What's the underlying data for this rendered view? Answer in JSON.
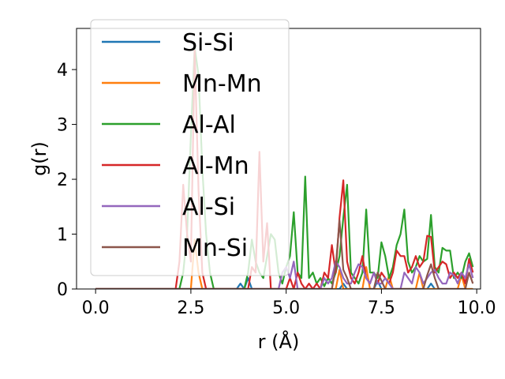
{
  "chart_data": {
    "type": "line",
    "title": "",
    "xlabel": "r (Å)",
    "ylabel": "g(r)",
    "xlim": [
      -0.5,
      10.1
    ],
    "ylim": [
      0,
      4.75
    ],
    "xticks": [
      0.0,
      2.5,
      5.0,
      7.5,
      10.0
    ],
    "xtick_labels": [
      "0.0",
      "2.5",
      "5.0",
      "7.5",
      "10.0"
    ],
    "yticks": [
      0,
      1,
      2,
      3,
      4
    ],
    "ytick_labels": [
      "0",
      "1",
      "2",
      "3",
      "4"
    ],
    "grid": false,
    "legend_position": "upper-left",
    "series": [
      {
        "name": "Si-Si",
        "color": "#1f77b4",
        "x": [
          0,
          3.7,
          3.8,
          3.9,
          4.0,
          4.1,
          4.2,
          6.4,
          6.5,
          6.6,
          7.3,
          7.4,
          7.5,
          7.6,
          8.7,
          8.8,
          8.9,
          9.9
        ],
        "y": [
          0,
          0,
          0.1,
          0.0,
          0.2,
          0,
          0,
          0,
          0.1,
          0,
          0,
          0.15,
          0,
          0,
          0,
          0.1,
          0,
          0
        ]
      },
      {
        "name": "Mn-Mn",
        "color": "#ff7f0e",
        "x": [
          0,
          2.5,
          2.6,
          2.7,
          2.8,
          6.3,
          6.4,
          6.5,
          6.6,
          7.0,
          7.1,
          7.2,
          7.6,
          7.7,
          7.8,
          8.4,
          8.5,
          8.6,
          9.5,
          9.6,
          9.7,
          9.9
        ],
        "y": [
          0,
          0,
          0.9,
          0.3,
          0,
          0,
          0.35,
          0,
          0,
          0,
          0.4,
          0,
          0,
          0.25,
          0,
          0,
          0.3,
          0,
          0,
          0.25,
          0,
          0
        ]
      },
      {
        "name": "Al-Al",
        "color": "#2ca02c",
        "x": [
          0,
          2.1,
          2.2,
          2.3,
          2.4,
          2.5,
          2.6,
          2.7,
          2.8,
          2.9,
          3.0,
          3.1,
          3.2,
          3.8,
          3.9,
          4.0,
          4.1,
          4.2,
          4.3,
          4.4,
          4.5,
          4.6,
          4.7,
          4.8,
          4.9,
          5.0,
          5.1,
          5.2,
          5.3,
          5.4,
          5.5,
          5.6,
          5.7,
          5.8,
          5.9,
          6.0,
          6.1,
          6.2,
          6.3,
          6.4,
          6.5,
          6.6,
          6.7,
          6.8,
          6.9,
          7.0,
          7.1,
          7.2,
          7.3,
          7.4,
          7.5,
          7.6,
          7.7,
          7.8,
          7.9,
          8.0,
          8.1,
          8.2,
          8.3,
          8.4,
          8.5,
          8.6,
          8.7,
          8.8,
          8.9,
          9.0,
          9.1,
          9.2,
          9.3,
          9.4,
          9.5,
          9.6,
          9.7,
          9.8,
          9.9
        ],
        "y": [
          0,
          0,
          0,
          0.3,
          1.0,
          2.8,
          4.4,
          3.9,
          2.2,
          1.0,
          0.3,
          0,
          0,
          0,
          0,
          0.3,
          0.9,
          0.5,
          0.3,
          0.2,
          0.6,
          1.0,
          0.9,
          0.3,
          0.1,
          0.4,
          0.6,
          1.4,
          0.3,
          0.2,
          2.05,
          0.2,
          0.3,
          0.1,
          0.2,
          0.05,
          0.2,
          0.1,
          0.3,
          0.6,
          1.3,
          1.9,
          0.3,
          0.2,
          0.1,
          0.3,
          1.45,
          0.3,
          0.3,
          0.2,
          0.85,
          0.6,
          0.2,
          0.4,
          0.8,
          1.0,
          1.45,
          0.5,
          0.3,
          0.4,
          0.6,
          0.5,
          0.55,
          1.35,
          0.4,
          0.3,
          0.75,
          0.7,
          0.7,
          0.2,
          0.3,
          0.2,
          0.5,
          0.65,
          0.4
        ]
      },
      {
        "name": "Al-Mn",
        "color": "#d62728",
        "x": [
          0,
          2.0,
          2.1,
          2.2,
          2.3,
          2.4,
          2.5,
          2.6,
          2.7,
          2.8,
          2.9,
          4.0,
          4.1,
          4.2,
          4.3,
          4.4,
          4.5,
          4.6,
          5.0,
          5.1,
          5.2,
          5.3,
          5.4,
          5.5,
          5.6,
          5.7,
          5.8,
          5.9,
          6.0,
          6.1,
          6.2,
          6.3,
          6.4,
          6.5,
          6.6,
          6.7,
          6.8,
          6.9,
          7.0,
          7.1,
          7.2,
          7.3,
          7.4,
          7.5,
          7.6,
          7.7,
          7.8,
          7.9,
          8.0,
          8.1,
          8.2,
          8.3,
          8.4,
          8.5,
          8.6,
          8.7,
          8.8,
          8.9,
          9.0,
          9.1,
          9.2,
          9.3,
          9.4,
          9.5,
          9.6,
          9.7,
          9.8,
          9.9
        ],
        "y": [
          0,
          0,
          0,
          0.5,
          1.9,
          1.0,
          0.5,
          4.35,
          1.8,
          0.3,
          0,
          0,
          0.4,
          0.3,
          2.5,
          0.5,
          1.2,
          0,
          0,
          0.2,
          0,
          0.3,
          0.1,
          0,
          0.1,
          0,
          0.1,
          0,
          0.3,
          0.2,
          0.8,
          0.3,
          1.3,
          1.98,
          0.5,
          0.2,
          0.1,
          0.3,
          0.6,
          0.2,
          0.1,
          0.3,
          0.1,
          0.3,
          0.2,
          0.1,
          0.3,
          0.7,
          0.6,
          0.6,
          0.3,
          0.4,
          0.6,
          0.4,
          0.5,
          0.97,
          0.95,
          0.3,
          0.4,
          0.5,
          0.45,
          0.2,
          0.3,
          0.2,
          0.3,
          0.1,
          0.55,
          0.3
        ]
      },
      {
        "name": "Al-Si",
        "color": "#9467bd",
        "x": [
          0,
          4.8,
          4.9,
          5.0,
          5.1,
          5.2,
          5.3,
          5.9,
          6.0,
          6.1,
          6.2,
          6.3,
          6.4,
          6.5,
          6.6,
          6.7,
          6.8,
          6.9,
          7.0,
          7.1,
          7.2,
          7.3,
          7.4,
          7.5,
          7.6,
          7.7,
          7.8,
          8.0,
          8.1,
          8.2,
          8.3,
          8.4,
          8.5,
          8.6,
          8.7,
          8.8,
          8.9,
          9.0,
          9.1,
          9.2,
          9.3,
          9.4,
          9.5,
          9.6,
          9.7,
          9.8,
          9.9
        ],
        "y": [
          0,
          0,
          0.3,
          0.4,
          0.2,
          0.5,
          0,
          0,
          0.2,
          0.1,
          0.2,
          0.5,
          0.4,
          0.2,
          0.1,
          0.1,
          0.3,
          0.45,
          0.4,
          0.2,
          0.1,
          0.3,
          0.1,
          0.1,
          0.2,
          0.1,
          0,
          0,
          0.3,
          0.2,
          0.1,
          0.4,
          0.3,
          0.1,
          0.2,
          0.3,
          0.35,
          0.2,
          0.1,
          0.1,
          0.3,
          0.25,
          0.1,
          0.3,
          0.2,
          0.45,
          0.2
        ]
      },
      {
        "name": "Mn-Si",
        "color": "#8c564b",
        "x": [
          0,
          6.2,
          6.3,
          6.4,
          6.5,
          6.6,
          6.7,
          7.3,
          7.4,
          7.5,
          7.6,
          8.6,
          8.7,
          8.8,
          8.9,
          9.0,
          9.7,
          9.8,
          9.9
        ],
        "y": [
          0,
          0,
          0.4,
          1.25,
          0.35,
          0.2,
          0,
          0,
          0.3,
          0.15,
          0,
          0,
          0.25,
          0.45,
          0.2,
          0,
          0,
          0.3,
          0.1
        ]
      }
    ]
  }
}
